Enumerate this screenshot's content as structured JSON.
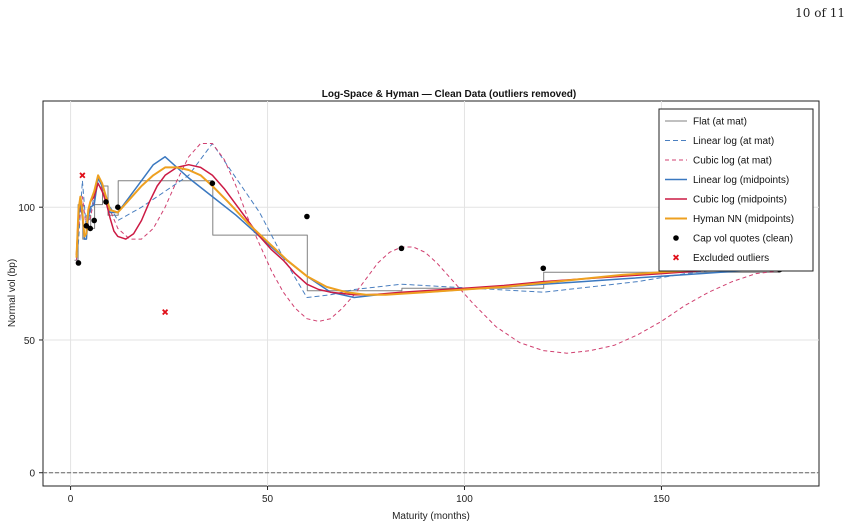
{
  "page": {
    "number_text": "10 of 11"
  },
  "chart_data": {
    "type": "line",
    "title": "Log-Space & Hyman — Clean Data (outliers removed)",
    "xlabel": "Maturity (months)",
    "ylabel": "Normal vol (bp)",
    "xlim": [
      -7,
      190
    ],
    "ylim": [
      -5,
      140
    ],
    "xticks": [
      0,
      50,
      100,
      150
    ],
    "yticks": [
      0,
      50,
      100
    ],
    "grid": true,
    "legend_position": "top-right",
    "reference_line": {
      "y": 0,
      "style": "dashed"
    },
    "series": [
      {
        "name": "Flat (at mat)",
        "color": "#808080",
        "dash": "solid",
        "width": 1,
        "x": [
          1,
          1.9,
          1.9,
          3.1,
          3.1,
          4.1,
          4.1,
          5.1,
          5.1,
          6.1,
          6.1,
          8.1,
          8.1,
          9.5,
          9.5,
          12.1,
          12.1,
          24.1,
          24.1,
          36.1,
          36.1,
          60.1,
          60.1,
          84.1,
          84.1,
          120.1,
          120.1,
          180
        ],
        "y": [
          80,
          80,
          101,
          101,
          88,
          88,
          97,
          97,
          92,
          92,
          101,
          101,
          108,
          108,
          97,
          97,
          110,
          110,
          110,
          110,
          89.5,
          89.5,
          68.5,
          68.5,
          69.5,
          69.5,
          75.5,
          75.5
        ]
      },
      {
        "name": "Linear log (at mat)",
        "color": "#4a7fc0",
        "dash": "5,3",
        "width": 1,
        "x": [
          1.5,
          2,
          3,
          4,
          5,
          6,
          7,
          9,
          12,
          18,
          24,
          30,
          36,
          42,
          48,
          54,
          60,
          66,
          72,
          84,
          96,
          108,
          120,
          132,
          144,
          156,
          168,
          180
        ],
        "y": [
          80,
          87,
          110,
          92,
          98,
          104,
          112,
          103,
          95,
          100,
          106,
          112,
          124,
          111,
          98,
          81,
          66,
          67,
          69,
          71,
          70,
          69,
          68,
          70,
          72,
          75,
          77,
          78
        ]
      },
      {
        "name": "Cubic log (at mat)",
        "color": "#d04070",
        "dash": "4,3",
        "width": 1,
        "x": [
          1.5,
          2,
          3,
          4,
          5,
          6,
          7,
          8,
          10,
          12,
          15,
          18,
          21,
          24,
          27,
          30,
          33,
          36,
          39,
          42,
          45,
          48,
          51,
          54,
          57,
          60,
          63,
          66,
          69,
          72,
          75,
          78,
          81,
          84,
          87,
          90,
          93,
          96,
          102,
          108,
          114,
          120,
          126,
          132,
          138,
          144,
          150,
          156,
          162,
          168,
          174,
          180
        ],
        "y": [
          80,
          92,
          104,
          92,
          96,
          103,
          109,
          107,
          99,
          92,
          88,
          88,
          92,
          100,
          110,
          119,
          124,
          124,
          118,
          108,
          96,
          86,
          76,
          68,
          62,
          58,
          57,
          58,
          62,
          67,
          73,
          79,
          83,
          85,
          85,
          83,
          79,
          74,
          64,
          55,
          49,
          46,
          45,
          46,
          48,
          52,
          57,
          63,
          68,
          72,
          75,
          76
        ]
      },
      {
        "name": "Linear log (midpoints)",
        "color": "#3a78c0",
        "dash": "solid",
        "width": 1.5,
        "x": [
          1.5,
          2,
          2.5,
          3,
          3.5,
          4,
          4.5,
          5,
          6,
          7,
          8,
          9,
          10,
          12,
          15,
          18,
          21,
          24,
          30,
          36,
          42,
          48,
          54,
          60,
          66,
          72,
          78,
          84,
          90,
          100,
          110,
          120,
          130,
          140,
          150,
          160,
          170,
          180
        ],
        "y": [
          82,
          96,
          102,
          96,
          88,
          88,
          96,
          100,
          101,
          111,
          108,
          104,
          98,
          98,
          104,
          110,
          116,
          119,
          111,
          104,
          97,
          89,
          81,
          74,
          68,
          66,
          67,
          67.5,
          68,
          69,
          70,
          71,
          72,
          73,
          74,
          75,
          76,
          77
        ]
      },
      {
        "name": "Cubic log (midpoints)",
        "color": "#cc1a44",
        "dash": "solid",
        "width": 1.5,
        "x": [
          1.5,
          2,
          2.5,
          3,
          3.5,
          4,
          4.5,
          5,
          6,
          7,
          8,
          9,
          10,
          11,
          12,
          14,
          16,
          18,
          20,
          22,
          24,
          27,
          30,
          33,
          36,
          39,
          42,
          45,
          48,
          51,
          54,
          57,
          60,
          63,
          66,
          69,
          72,
          75,
          78,
          81,
          84,
          90,
          100,
          110,
          120,
          130,
          140,
          150,
          160,
          170,
          180
        ],
        "y": [
          82,
          98,
          104,
          97,
          89,
          90,
          98,
          102,
          104,
          109,
          106,
          102,
          96,
          91,
          89,
          88,
          90,
          95,
          102,
          108,
          112,
          115,
          116,
          115,
          112,
          107,
          101,
          95,
          89,
          84,
          80,
          75,
          71,
          69,
          68,
          67.5,
          67,
          67,
          67.2,
          67.6,
          68,
          68.5,
          69.5,
          70.5,
          72,
          73,
          74,
          75,
          76,
          76.5,
          77
        ]
      },
      {
        "name": "Hyman NN (midpoints)",
        "color": "#eea020",
        "dash": "solid",
        "width": 2,
        "x": [
          1.5,
          2,
          2.5,
          3,
          3.5,
          4,
          4.5,
          5,
          6,
          7,
          8,
          9,
          10,
          12,
          15,
          18,
          21,
          24,
          27,
          30,
          33,
          36,
          40,
          45,
          50,
          55,
          60,
          65,
          70,
          75,
          80,
          85,
          90,
          100,
          110,
          120,
          130,
          140,
          150,
          160,
          170,
          180
        ],
        "y": [
          81,
          99,
          104,
          98,
          89,
          90,
          99,
          102,
          106,
          112,
          109,
          104,
          99,
          98,
          103,
          108,
          112,
          115,
          115,
          114,
          112,
          108,
          102,
          94,
          87,
          80,
          74,
          70,
          68,
          67,
          67,
          67.5,
          68,
          69,
          70,
          71.5,
          73,
          74.5,
          75.5,
          76.5,
          77,
          77.5
        ]
      }
    ],
    "points": {
      "name": "Cap vol quotes (clean)",
      "color": "#000000",
      "x": [
        2,
        4,
        5,
        6,
        9,
        12,
        36,
        60,
        84,
        120,
        180
      ],
      "y": [
        79,
        93,
        92,
        95,
        102,
        100,
        109,
        96.5,
        84.5,
        77,
        76.5
      ]
    },
    "outliers": {
      "name": "Excluded outliers",
      "color": "#e0101a",
      "x": [
        3,
        24
      ],
      "y": [
        112,
        60.5
      ]
    }
  }
}
